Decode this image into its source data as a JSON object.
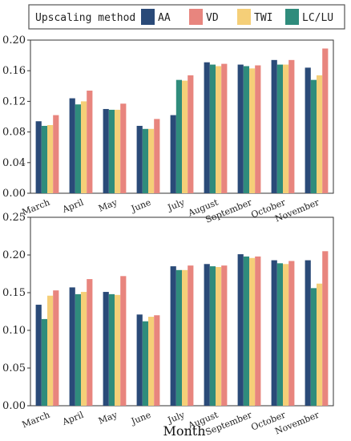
{
  "legend": {
    "title": "Upscaling method"
  },
  "xlabel": "Month",
  "colors": {
    "AA": "#2a4a78",
    "VD": "#e8857e",
    "TWI": "#f5cf78",
    "LC/LU": "#2f8c7c"
  },
  "chart_data": [
    {
      "type": "bar",
      "categories": [
        "March",
        "April",
        "May",
        "June",
        "July",
        "August",
        "September",
        "October",
        "November"
      ],
      "ylim": [
        0,
        0.2
      ],
      "yticks": [
        "0.00",
        "0.04",
        "0.08",
        "0.12",
        "0.16",
        "0.20"
      ],
      "grid": false,
      "legend": "top",
      "series": [
        {
          "name": "AA",
          "values": [
            0.094,
            0.124,
            0.11,
            0.088,
            0.102,
            0.171,
            0.168,
            0.174,
            0.164
          ]
        },
        {
          "name": "LC/LU",
          "values": [
            0.088,
            0.116,
            0.109,
            0.084,
            0.148,
            0.168,
            0.166,
            0.168,
            0.148
          ]
        },
        {
          "name": "TWI",
          "values": [
            0.089,
            0.12,
            0.109,
            0.084,
            0.147,
            0.166,
            0.163,
            0.168,
            0.154
          ]
        },
        {
          "name": "VD",
          "values": [
            0.102,
            0.134,
            0.117,
            0.097,
            0.154,
            0.169,
            0.167,
            0.174,
            0.189
          ]
        }
      ]
    },
    {
      "type": "bar",
      "categories": [
        "March",
        "April",
        "May",
        "June",
        "July",
        "August",
        "September",
        "October",
        "November"
      ],
      "ylim": [
        0,
        0.25
      ],
      "yticks": [
        "0.00",
        "0.05",
        "0.10",
        "0.15",
        "0.20",
        "0.25"
      ],
      "grid": false,
      "xlabel": "Month",
      "series": [
        {
          "name": "AA",
          "values": [
            0.134,
            0.157,
            0.151,
            0.121,
            0.185,
            0.188,
            0.201,
            0.193,
            0.193
          ]
        },
        {
          "name": "LC/LU",
          "values": [
            0.115,
            0.148,
            0.148,
            0.112,
            0.18,
            0.185,
            0.198,
            0.189,
            0.156
          ]
        },
        {
          "name": "TWI",
          "values": [
            0.146,
            0.151,
            0.147,
            0.118,
            0.18,
            0.184,
            0.196,
            0.188,
            0.162
          ]
        },
        {
          "name": "VD",
          "values": [
            0.153,
            0.168,
            0.172,
            0.12,
            0.186,
            0.186,
            0.198,
            0.192,
            0.205
          ]
        }
      ]
    }
  ]
}
